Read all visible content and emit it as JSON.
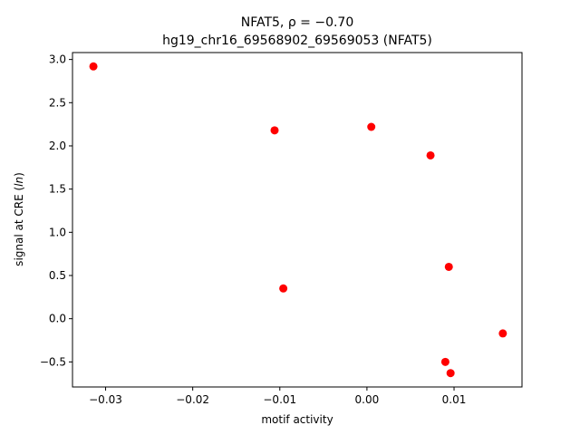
{
  "chart_data": {
    "type": "scatter",
    "title_line1": "NFAT5, ρ = −0.70",
    "title_line2": "hg19_chr16_69568902_69569053 (NFAT5)",
    "xlabel": "motif activity",
    "ylabel": "signal at CRE (ln)",
    "xlim": [
      -0.0338,
      0.0178
    ],
    "ylim": [
      -0.79,
      3.08
    ],
    "x_ticks": [
      {
        "value": -0.03,
        "label": "−0.03"
      },
      {
        "value": -0.02,
        "label": "−0.02"
      },
      {
        "value": -0.01,
        "label": "−0.01"
      },
      {
        "value": 0.0,
        "label": "0.00"
      },
      {
        "value": 0.01,
        "label": "0.01"
      }
    ],
    "y_ticks": [
      {
        "value": -0.5,
        "label": "−0.5"
      },
      {
        "value": 0.0,
        "label": "0.0"
      },
      {
        "value": 0.5,
        "label": "0.5"
      },
      {
        "value": 1.0,
        "label": "1.0"
      },
      {
        "value": 1.5,
        "label": "1.5"
      },
      {
        "value": 2.0,
        "label": "2.0"
      },
      {
        "value": 2.5,
        "label": "2.5"
      },
      {
        "value": 3.0,
        "label": "3.0"
      }
    ],
    "grid": false,
    "marker_color": "#ff0000",
    "points": [
      {
        "x": -0.0314,
        "y": 2.92
      },
      {
        "x": -0.0106,
        "y": 2.18
      },
      {
        "x": -0.0096,
        "y": 0.35
      },
      {
        "x": 0.0005,
        "y": 2.22
      },
      {
        "x": 0.0073,
        "y": 1.89
      },
      {
        "x": 0.0094,
        "y": 0.6
      },
      {
        "x": 0.009,
        "y": -0.5
      },
      {
        "x": 0.0096,
        "y": -0.63
      },
      {
        "x": 0.0156,
        "y": -0.17
      }
    ]
  }
}
